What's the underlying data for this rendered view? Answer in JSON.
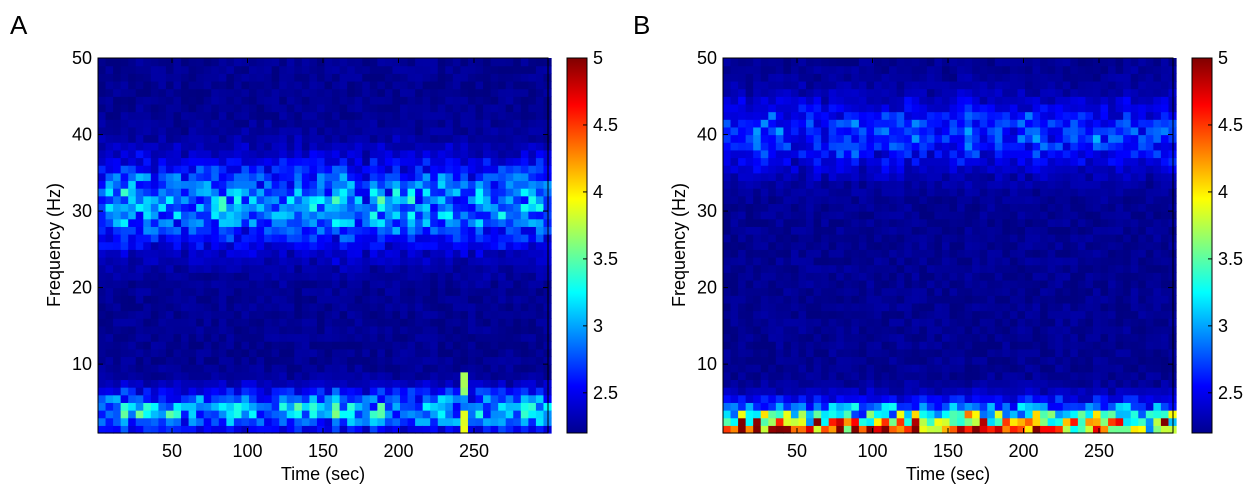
{
  "chart_data": [
    {
      "type": "heatmap",
      "panel_label": "A",
      "xlabel": "Time (sec)",
      "ylabel": "Frequency (Hz)",
      "xlim": [
        1,
        299
      ],
      "ylim": [
        1,
        50
      ],
      "x_ticks": [
        50,
        100,
        150,
        200,
        250
      ],
      "y_ticks": [
        10,
        20,
        30,
        40,
        50
      ],
      "colorbar": {
        "range": [
          2.2,
          5
        ],
        "ticks": [
          2.5,
          3,
          3.5,
          4,
          4.5,
          5
        ],
        "colormap": "jet"
      },
      "x": {
        "start": 1,
        "end": 299,
        "step": 5
      },
      "y": {
        "start": 1,
        "end": 50,
        "step": 1
      },
      "features": {
        "background": 2.25,
        "bands": [
          {
            "center_hz": 31,
            "width_hz": 5.5,
            "amplitude": 0.75
          },
          {
            "center_hz": 4,
            "width_hz": 2.6,
            "amplitude": 0.85
          }
        ],
        "hot_spots": [
          {
            "time": 241,
            "freq": [
              1,
              3
            ],
            "value": 3.9
          },
          {
            "time": 241,
            "freq": [
              6,
              8
            ],
            "value": 3.7
          }
        ]
      }
    },
    {
      "type": "heatmap",
      "panel_label": "B",
      "xlabel": "Time (sec)",
      "ylabel": "Frequency (Hz)",
      "xlim": [
        1,
        299
      ],
      "ylim": [
        1,
        50
      ],
      "x_ticks": [
        50,
        100,
        150,
        200,
        250
      ],
      "y_ticks": [
        10,
        20,
        30,
        40,
        50
      ],
      "colorbar": {
        "range": [
          2.2,
          5
        ],
        "ticks": [
          2.5,
          3,
          3.5,
          4,
          4.5,
          5
        ],
        "colormap": "jet"
      },
      "x": {
        "start": 1,
        "end": 299,
        "step": 5
      },
      "y": {
        "start": 1,
        "end": 50,
        "step": 1
      },
      "features": {
        "background": 2.25,
        "bands": [
          {
            "center_hz": 40,
            "width_hz": 4.5,
            "amplitude": 0.5
          },
          {
            "center_hz": 1,
            "width_hz": 3.2,
            "amplitude": 2.3
          }
        ],
        "hot_spots": []
      }
    }
  ]
}
